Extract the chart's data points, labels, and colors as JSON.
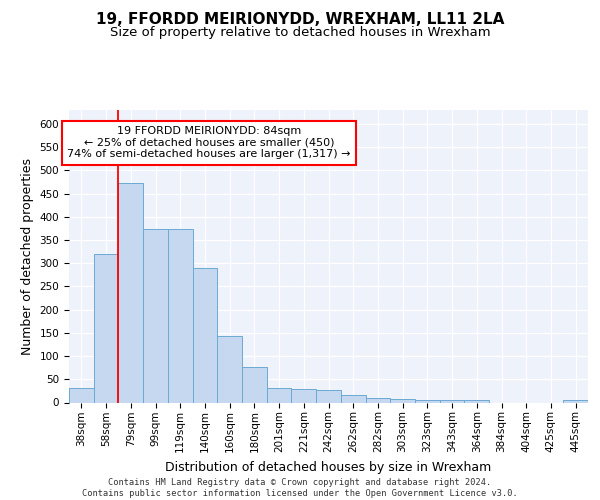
{
  "title": "19, FFORDD MEIRIONYDD, WREXHAM, LL11 2LA",
  "subtitle": "Size of property relative to detached houses in Wrexham",
  "xlabel": "Distribution of detached houses by size in Wrexham",
  "ylabel": "Number of detached properties",
  "bar_labels": [
    "38sqm",
    "58sqm",
    "79sqm",
    "99sqm",
    "119sqm",
    "140sqm",
    "160sqm",
    "180sqm",
    "201sqm",
    "221sqm",
    "242sqm",
    "262sqm",
    "282sqm",
    "303sqm",
    "323sqm",
    "343sqm",
    "364sqm",
    "384sqm",
    "404sqm",
    "425sqm",
    "445sqm"
  ],
  "bar_values": [
    32,
    320,
    473,
    374,
    374,
    290,
    143,
    76,
    31,
    29,
    27,
    16,
    9,
    7,
    5,
    5,
    5,
    0,
    0,
    0,
    5
  ],
  "bar_color": "#c5d8f0",
  "bar_edge_color": "#6aaad4",
  "vline_x": 1.5,
  "vline_color": "red",
  "annotation_text": "19 FFORDD MEIRIONYDD: 84sqm\n← 25% of detached houses are smaller (450)\n74% of semi-detached houses are larger (1,317) →",
  "annotation_box_color": "white",
  "annotation_box_edge": "red",
  "ylim": [
    0,
    630
  ],
  "yticks": [
    0,
    50,
    100,
    150,
    200,
    250,
    300,
    350,
    400,
    450,
    500,
    550,
    600
  ],
  "footer_line1": "Contains HM Land Registry data © Crown copyright and database right 2024.",
  "footer_line2": "Contains public sector information licensed under the Open Government Licence v3.0.",
  "title_fontsize": 11,
  "subtitle_fontsize": 9.5,
  "axis_label_fontsize": 9,
  "tick_fontsize": 7.5,
  "background_color": "#eef2fb"
}
